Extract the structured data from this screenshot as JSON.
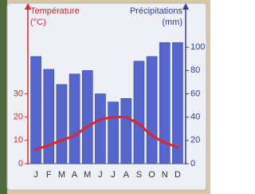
{
  "chart_data": {
    "type": "bar",
    "ylabel": "Température",
    "yunit": "(°C)",
    "y2label": "Précipitations",
    "y2unit": "(mm)",
    "categories": [
      "J",
      "F",
      "M",
      "A",
      "M",
      "J",
      "J",
      "A",
      "S",
      "O",
      "N",
      "D"
    ],
    "ylim": [
      0,
      60
    ],
    "yticks": [
      0,
      10,
      20,
      30
    ],
    "ycolor": "#e0262b",
    "y2lim": [
      0,
      120
    ],
    "y2ticks": [
      0,
      20,
      40,
      60,
      80,
      100
    ],
    "y2color": "#2f3f9e",
    "series": [
      {
        "type": "bar",
        "axis": "y2",
        "color": "#5566cc",
        "values": [
          92,
          81,
          68,
          77,
          80,
          60,
          53,
          56,
          88,
          92,
          104,
          104
        ]
      },
      {
        "type": "line",
        "color": "#e0262b",
        "values": [
          6,
          8,
          10,
          12,
          16,
          19,
          20,
          20,
          17,
          12,
          9,
          7
        ]
      }
    ]
  }
}
